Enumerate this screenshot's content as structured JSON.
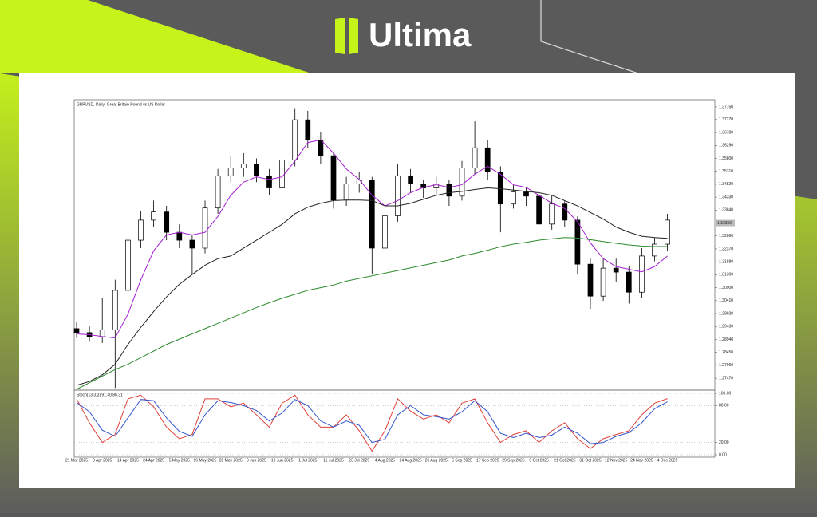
{
  "brand": {
    "name": "Ultima"
  },
  "chart_data": [
    {
      "type": "candlestick",
      "title": "GBPUSD, Daily: Great Britain Pound vs US Dollar",
      "categories": [
        "21 Mar 2025",
        null,
        "3 Apr 2025",
        null,
        "14 Apr 2025",
        null,
        "24 Apr 2025",
        null,
        "5 May 2025",
        null,
        "16 May 2025",
        null,
        "28 May 2025",
        null,
        "9 Jun 2025",
        null,
        "19 Jun 2025",
        null,
        "1 Jul 2025",
        null,
        "11 Jul 2025",
        null,
        "23 Jul 2025",
        null,
        "4 Aug 2025",
        null,
        "14 Aug 2025",
        null,
        "26 Aug 2025",
        null,
        "5 Sep 2025",
        null,
        "17 Sep 2025",
        null,
        "29 Sep 2025",
        null,
        "9 Oct 2025",
        null,
        "21 Oct 2025",
        null,
        "31 Oct 2025",
        null,
        "12 Nov 2025",
        null,
        "24 Nov 2025",
        null,
        "4 Dec 2025"
      ],
      "open": [
        1.2935,
        1.292,
        1.2905,
        1.293,
        1.308,
        1.327,
        1.3346,
        1.3377,
        1.33,
        1.327,
        1.324,
        1.3392,
        1.3514,
        1.3544,
        1.3559,
        1.3514,
        1.3468,
        1.3574,
        1.3726,
        1.365,
        1.359,
        1.3422,
        1.3483,
        1.3498,
        1.324,
        1.3362,
        1.3514,
        1.3483,
        1.3468,
        1.3483,
        1.3437,
        1.3544,
        1.362,
        1.3529,
        1.3407,
        1.3453,
        1.3437,
        1.3331,
        1.3407,
        1.3346,
        1.3179,
        1.3058,
        1.3164,
        1.3149,
        1.3073,
        1.321,
        1.3255
      ],
      "high": [
        1.296,
        1.2945,
        1.305,
        1.312,
        1.33,
        1.338,
        1.342,
        1.34,
        1.333,
        1.329,
        1.342,
        1.354,
        1.359,
        1.36,
        1.358,
        1.354,
        1.361,
        1.377,
        1.376,
        1.368,
        1.36,
        1.351,
        1.353,
        1.351,
        1.339,
        1.356,
        1.354,
        1.35,
        1.351,
        1.35,
        1.357,
        1.372,
        1.365,
        1.355,
        1.348,
        1.347,
        1.346,
        1.344,
        1.342,
        1.336,
        1.32,
        1.32,
        1.32,
        1.317,
        1.324,
        1.328,
        1.337
      ],
      "low": [
        1.29,
        1.2885,
        1.288,
        1.271,
        1.305,
        1.324,
        1.332,
        1.327,
        1.324,
        1.314,
        1.322,
        1.337,
        1.349,
        1.351,
        1.349,
        1.344,
        1.344,
        1.355,
        1.362,
        1.356,
        1.339,
        1.34,
        1.345,
        1.314,
        1.321,
        1.334,
        1.345,
        1.343,
        1.344,
        1.34,
        1.342,
        1.352,
        1.35,
        1.33,
        1.339,
        1.34,
        1.329,
        1.331,
        1.332,
        1.314,
        1.301,
        1.304,
        1.311,
        1.303,
        1.305,
        1.319,
        1.323
      ],
      "close": [
        1.292,
        1.2905,
        1.293,
        1.308,
        1.327,
        1.3346,
        1.3377,
        1.33,
        1.327,
        1.324,
        1.3392,
        1.3514,
        1.3544,
        1.3559,
        1.3514,
        1.3468,
        1.3574,
        1.3726,
        1.365,
        1.359,
        1.3422,
        1.3483,
        1.3498,
        1.324,
        1.3362,
        1.3514,
        1.3483,
        1.3468,
        1.3483,
        1.3437,
        1.3544,
        1.362,
        1.3529,
        1.3407,
        1.3453,
        1.3437,
        1.3331,
        1.3407,
        1.3346,
        1.3179,
        1.3058,
        1.3164,
        1.3149,
        1.3073,
        1.321,
        1.3255,
        1.3346
      ],
      "series": [
        {
          "color": "#a51fd0",
          "values": [
            1.2915,
            1.2912,
            1.2905,
            1.29,
            1.299,
            1.312,
            1.323,
            1.329,
            1.33,
            1.329,
            1.33,
            1.336,
            1.344,
            1.349,
            1.351,
            1.35,
            1.351,
            1.357,
            1.364,
            1.365,
            1.36,
            1.354,
            1.35,
            1.344,
            1.34,
            1.342,
            1.345,
            1.347,
            1.348,
            1.347,
            1.348,
            1.352,
            1.355,
            1.352,
            1.348,
            1.347,
            1.344,
            1.341,
            1.339,
            1.334,
            1.326,
            1.32,
            1.317,
            1.316,
            1.315,
            1.317,
            1.321
          ]
        },
        {
          "color": "#222222",
          "values": [
            1.272,
            1.2735,
            1.276,
            1.28,
            1.2875,
            1.294,
            1.3,
            1.3055,
            1.3103,
            1.314,
            1.3175,
            1.32,
            1.321,
            1.324,
            1.327,
            1.33,
            1.333,
            1.337,
            1.3395,
            1.341,
            1.342,
            1.3422,
            1.3422,
            1.342,
            1.34,
            1.34,
            1.341,
            1.3425,
            1.344,
            1.345,
            1.3455,
            1.3462,
            1.3468,
            1.3465,
            1.346,
            1.3455,
            1.345,
            1.344,
            1.342,
            1.34,
            1.3375,
            1.335,
            1.332,
            1.33,
            1.3285,
            1.328,
            1.3277
          ]
        },
        {
          "color": "#2c8a2c",
          "values": [
            1.2705,
            1.273,
            1.2755,
            1.278,
            1.28,
            1.2825,
            1.285,
            1.2875,
            1.2895,
            1.2915,
            1.2935,
            1.2955,
            1.2975,
            1.2995,
            1.3015,
            1.3033,
            1.305,
            1.3065,
            1.308,
            1.309,
            1.31,
            1.3115,
            1.3125,
            1.3135,
            1.3145,
            1.3155,
            1.3165,
            1.3175,
            1.3185,
            1.3195,
            1.321,
            1.322,
            1.3232,
            1.3245,
            1.3255,
            1.3262,
            1.327,
            1.3275,
            1.328,
            1.3278,
            1.3272,
            1.3265,
            1.3258,
            1.3252,
            1.3248,
            1.3246,
            1.3246
          ]
        }
      ],
      "price_line": {
        "value": 1.3335,
        "label": "1.33350"
      },
      "ylim": [
        1.2705,
        1.3793
      ],
      "yticks": [
        {
          "value": 1.2747,
          "label": "1.27470"
        },
        {
          "value": 1.2796,
          "label": "1.27960"
        },
        {
          "value": 1.2845,
          "label": "1.28450"
        },
        {
          "value": 1.2894,
          "label": "1.28940"
        },
        {
          "value": 1.2943,
          "label": "1.29430"
        },
        {
          "value": 1.2992,
          "label": "1.29920"
        },
        {
          "value": 1.3041,
          "label": "1.30410"
        },
        {
          "value": 1.309,
          "label": "1.30900"
        },
        {
          "value": 1.3139,
          "label": "1.31390"
        },
        {
          "value": 1.3188,
          "label": "1.31880"
        },
        {
          "value": 1.3237,
          "label": "1.32370"
        },
        {
          "value": 1.3286,
          "label": "1.32860"
        },
        {
          "value": 1.3384,
          "label": "1.33840"
        },
        {
          "value": 1.3433,
          "label": "1.34330"
        },
        {
          "value": 1.3482,
          "label": "1.34820"
        },
        {
          "value": 1.3531,
          "label": "1.35310"
        },
        {
          "value": 1.358,
          "label": "1.35800"
        },
        {
          "value": 1.3629,
          "label": "1.36290"
        },
        {
          "value": 1.3678,
          "label": "1.36780"
        },
        {
          "value": 1.3727,
          "label": "1.37270"
        },
        {
          "value": 1.3775,
          "label": "1.37750"
        }
      ]
    },
    {
      "type": "line",
      "title": "Stoch(13,3,3) 91.40 86.31",
      "series": [
        {
          "color": "#e0403a",
          "values": [
            91,
            52,
            20,
            33,
            91,
            97,
            78,
            45,
            26,
            33,
            91,
            91,
            78,
            84,
            65,
            45,
            84,
            97,
            65,
            45,
            45,
            65,
            39,
            6,
            39,
            91,
            71,
            58,
            65,
            52,
            84,
            91,
            52,
            20,
            33,
            39,
            20,
            39,
            52,
            26,
            10,
            26,
            33,
            39,
            65,
            84,
            91.4
          ]
        },
        {
          "color": "#3355cc",
          "values": [
            85,
            70,
            40,
            30,
            60,
            90,
            88,
            60,
            38,
            30,
            65,
            88,
            85,
            80,
            72,
            55,
            68,
            90,
            80,
            55,
            45,
            55,
            48,
            20,
            25,
            65,
            80,
            65,
            62,
            58,
            70,
            88,
            70,
            35,
            28,
            35,
            28,
            32,
            45,
            35,
            18,
            20,
            30,
            36,
            52,
            75,
            86.31
          ]
        }
      ],
      "ylim": [
        0,
        100
      ],
      "yticks": [
        {
          "value": 0,
          "label": "0.00"
        },
        {
          "value": 20,
          "label": "20.00"
        },
        {
          "value": 80,
          "label": "80.00"
        },
        {
          "value": 100,
          "label": "100.00"
        }
      ]
    }
  ]
}
